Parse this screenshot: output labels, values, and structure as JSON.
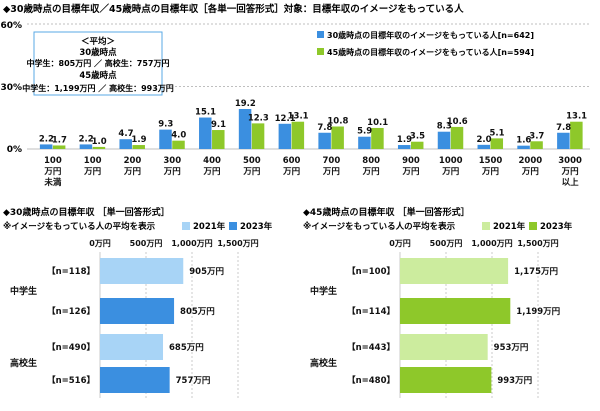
{
  "colors": {
    "blue": "#3b8fe0",
    "green": "#8ec82a",
    "light_blue": "#a8d4f6",
    "light_green": "#ccec9e",
    "grid": "#bfbfbf",
    "note_border": "#5aa9e6"
  },
  "chart_data": [
    {
      "type": "bar",
      "title": "◆30歳時点の目標年収／45歳時点の目標年収［各単一回答形式］対象：目標年収のイメージをもっている人",
      "ylim": [
        0,
        60
      ],
      "yticks": [
        "0%",
        "30%",
        "60%"
      ],
      "categories": [
        [
          "100",
          "万円",
          "未満"
        ],
        [
          "100",
          "万円"
        ],
        [
          "200",
          "万円"
        ],
        [
          "300",
          "万円"
        ],
        [
          "400",
          "万円"
        ],
        [
          "500",
          "万円"
        ],
        [
          "600",
          "万円"
        ],
        [
          "700",
          "万円"
        ],
        [
          "800",
          "万円"
        ],
        [
          "900",
          "万円"
        ],
        [
          "1000",
          "万円"
        ],
        [
          "1500",
          "万円"
        ],
        [
          "2000",
          "万円"
        ],
        [
          "3000",
          "万円",
          "以上"
        ]
      ],
      "series": [
        {
          "name": "30歳時点の目標年収のイメージをもっている人[n=642]",
          "values": [
            2.2,
            2.2,
            4.7,
            9.3,
            15.1,
            19.2,
            12.1,
            7.8,
            5.9,
            1.9,
            8.3,
            2.0,
            1.6,
            7.8
          ]
        },
        {
          "name": "45歳時点の目標年収のイメージをもっている人[n=594]",
          "values": [
            1.7,
            1.0,
            1.9,
            4.0,
            9.1,
            12.3,
            13.1,
            10.8,
            10.1,
            3.5,
            10.6,
            5.1,
            3.7,
            13.1
          ]
        }
      ],
      "labels": [
        [
          "2.2",
          "2.2",
          "4.7",
          "9.3",
          "15.1",
          "19.2",
          "12.1",
          "7.8",
          "5.9",
          "1.9",
          "8.3",
          "2.0",
          "1.6",
          "7.8"
        ],
        [
          "1.7",
          "1.0",
          "1.9",
          "4.0",
          "9.1",
          "12.3",
          "13.1",
          "10.8",
          "10.1",
          "3.5",
          "10.6",
          "5.1",
          "3.7",
          "13.1"
        ]
      ],
      "note": [
        "＜平均＞",
        "30歳時点",
        "中学生：805万円 ／ 高校生：757万円",
        "45歳時点",
        "中学生：1,199万円 ／ 高校生：993万円"
      ]
    },
    {
      "type": "bar",
      "title": "◆30歳時点の目標年収 ［単一回答形式］",
      "subtitle": "※イメージをもっている人の平均を表示",
      "legend": [
        "2021年",
        "2023年"
      ],
      "xlim": [
        0,
        1500
      ],
      "xticks": [
        "0万円",
        "500万円",
        "1,000万円",
        "1,500万円"
      ],
      "groups": [
        "中学生",
        "高校生"
      ],
      "rows": [
        {
          "n": "【n=118】",
          "value": 905,
          "label": "905万円",
          "year": "2021年"
        },
        {
          "n": "【n=126】",
          "value": 805,
          "label": "805万円",
          "year": "2023年"
        },
        {
          "n": "【n=490】",
          "value": 685,
          "label": "685万円",
          "year": "2021年"
        },
        {
          "n": "【n=516】",
          "value": 757,
          "label": "757万円",
          "year": "2023年"
        }
      ]
    },
    {
      "type": "bar",
      "title": "◆45歳時点の目標年収 ［単一回答形式］",
      "subtitle": "※イメージをもっている人の平均を表示",
      "legend": [
        "2021年",
        "2023年"
      ],
      "xlim": [
        0,
        1500
      ],
      "xticks": [
        "0万円",
        "500万円",
        "1,000万円",
        "1,500万円"
      ],
      "groups": [
        "中学生",
        "高校生"
      ],
      "rows": [
        {
          "n": "【n=100】",
          "value": 1175,
          "label": "1,175万円",
          "year": "2021年"
        },
        {
          "n": "【n=114】",
          "value": 1199,
          "label": "1,199万円",
          "year": "2023年"
        },
        {
          "n": "【n=443】",
          "value": 953,
          "label": "953万円",
          "year": "2021年"
        },
        {
          "n": "【n=480】",
          "value": 993,
          "label": "993万円",
          "year": "2023年"
        }
      ]
    }
  ]
}
